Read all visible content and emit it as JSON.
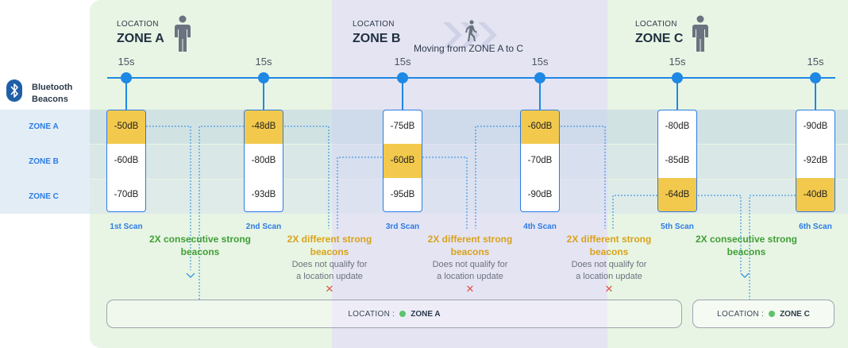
{
  "zones_header": [
    {
      "location_label": "LOCATION",
      "zone": "ZONE A",
      "icon": "person-standing-icon"
    },
    {
      "location_label": "LOCATION",
      "zone": "ZONE B",
      "icon": "person-walking-icon"
    },
    {
      "location_label": "LOCATION",
      "zone": "ZONE C",
      "icon": "person-standing-icon"
    }
  ],
  "moving_text": "Moving from ZONE A to C",
  "interval_label": "15s",
  "beacons_label_line1": "Bluetooth",
  "beacons_label_line2": "Beacons",
  "row_labels": [
    "ZONE A",
    "ZONE B",
    "ZONE C"
  ],
  "scans": [
    {
      "label": "1st Scan",
      "values": [
        "-50dB",
        "-60dB",
        "-70dB"
      ],
      "strong_row": 0
    },
    {
      "label": "2nd Scan",
      "values": [
        "-48dB",
        "-80dB",
        "-93dB"
      ],
      "strong_row": 0
    },
    {
      "label": "3rd Scan",
      "values": [
        "-75dB",
        "-60dB",
        "-95dB"
      ],
      "strong_row": 1
    },
    {
      "label": "4th Scan",
      "values": [
        "-60dB",
        "-70dB",
        "-90dB"
      ],
      "strong_row": 0
    },
    {
      "label": "5th Scan",
      "values": [
        "-80dB",
        "-85dB",
        "-64dB"
      ],
      "strong_row": 2
    },
    {
      "label": "6th Scan",
      "values": [
        "-90dB",
        "-92dB",
        "-40dB"
      ],
      "strong_row": 2
    }
  ],
  "notes": {
    "consecutive_line1": "2X consecutive strong",
    "consecutive_line2": "beacons",
    "different_line1": "2X different strong",
    "different_line2": "beacons",
    "noqualify_line1": "Does not qualify for",
    "noqualify_line2": "a location update",
    "x_mark": "✕"
  },
  "results": [
    {
      "label": "LOCATION :",
      "zone": "ZONE A"
    },
    {
      "label": "LOCATION :",
      "zone": "ZONE C"
    }
  ],
  "colors": {
    "zone_a_bg": "#e8f5e4",
    "zone_b_bg": "#e5e4f3",
    "zone_c_bg": "#e8f5e4",
    "row_band": "#dce6ee",
    "accent_blue": "#1e88e5",
    "strong_cell": "#f2c94c",
    "green_text": "#3f9e36",
    "orange_text": "#d9a21b",
    "dot_green": "#5cc46a",
    "x_red": "#e0524a"
  }
}
